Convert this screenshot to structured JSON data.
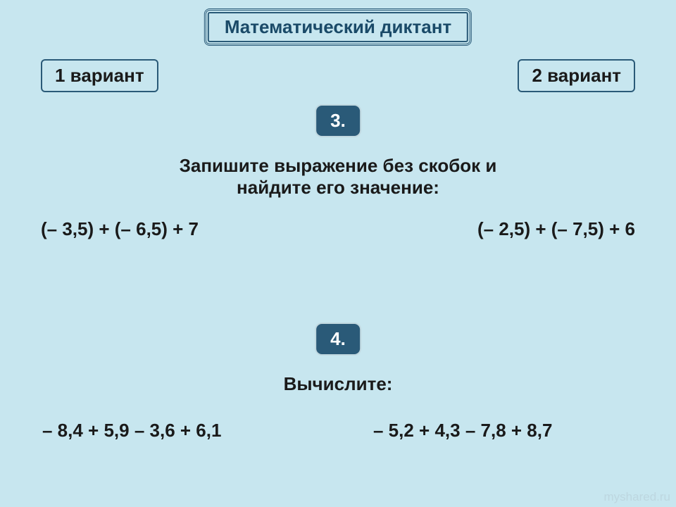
{
  "colors": {
    "background": "#c7e6ef",
    "box_border": "#2a5a78",
    "number_bg": "#2a5a78",
    "number_text": "#ffffff",
    "text_dark": "#1a1a1a",
    "title_text": "#1a4a68",
    "watermark": "rgba(180, 200, 210, 0.5)"
  },
  "typography": {
    "font_family": "Arial, sans-serif",
    "main_fontsize": 26,
    "font_weight": "bold"
  },
  "title": "Математический диктант",
  "variants": {
    "left": "1 вариант",
    "right": "2 вариант"
  },
  "problems": [
    {
      "number": "3.",
      "instruction_line1": "Запишите выражение без скобок и",
      "instruction_line2": "найдите его значение:",
      "expr_left": "(– 3,5) + (– 6,5) + 7",
      "expr_right": "(– 2,5) + (– 7,5) + 6"
    },
    {
      "number": "4.",
      "instruction": "Вычислите:",
      "expr_left": "– 8,4 + 5,9 – 3,6 + 6,1",
      "expr_right": "– 5,2 + 4,3 – 7,8 + 8,7"
    }
  ],
  "watermark": "myshared.ru"
}
